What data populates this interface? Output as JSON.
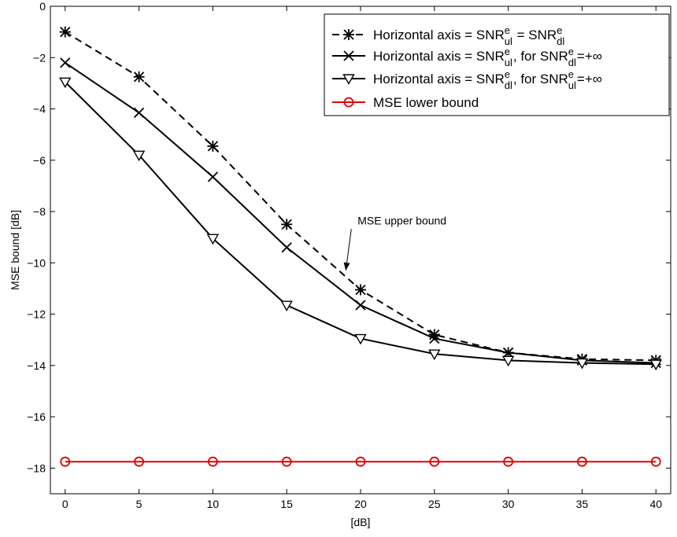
{
  "chart_data": {
    "type": "line",
    "xlabel": "[dB]",
    "ylabel": "MSE bound [dB]",
    "xlim": [
      -1,
      41
    ],
    "ylim": [
      -19,
      0
    ],
    "xticks": [
      0,
      5,
      10,
      15,
      20,
      25,
      30,
      35,
      40
    ],
    "yticks": [
      0,
      -2,
      -4,
      -6,
      -8,
      -10,
      -12,
      -14,
      -16,
      -18
    ],
    "grid": false,
    "legend_position": "top-right",
    "x": [
      0,
      5,
      10,
      15,
      20,
      25,
      30,
      35,
      40
    ],
    "series": [
      {
        "name": "Horizontal axis = SNR^e_ul = SNR^e_dl",
        "legend_parts": [
          "Horizontal axis =   SNR",
          "e",
          "ul",
          " = SNR",
          "e",
          "dl"
        ],
        "values": [
          -1.0,
          -2.75,
          -5.45,
          -8.5,
          -11.05,
          -12.8,
          -13.5,
          -13.75,
          -13.8
        ],
        "marker": "asterisk",
        "linestyle": "dashed",
        "color": "#000000"
      },
      {
        "name": "Horizontal axis = SNR^e_ul, for SNR^e_dl=+∞",
        "legend_parts": [
          "Horizontal axis =  SNR",
          "e",
          "ul",
          ", for SNR",
          "e",
          "dl",
          "=+∞"
        ],
        "values": [
          -2.2,
          -4.15,
          -6.65,
          -9.4,
          -11.65,
          -12.95,
          -13.5,
          -13.8,
          -13.9
        ],
        "marker": "x",
        "linestyle": "solid",
        "color": "#000000"
      },
      {
        "name": "Horizontal axis = SNR^e_dl, for SNR^e_ul=+∞",
        "legend_parts": [
          "Horizontal axis = SNR",
          "e",
          "dl",
          ", for SNR",
          "e",
          "ul",
          "=+∞"
        ],
        "values": [
          -2.95,
          -5.8,
          -9.05,
          -11.65,
          -12.95,
          -13.55,
          -13.8,
          -13.9,
          -13.95
        ],
        "marker": "triangle-down",
        "linestyle": "solid",
        "color": "#000000"
      },
      {
        "name": "MSE lower bound",
        "legend_parts": [
          "MSE lower bound"
        ],
        "values": [
          -17.75,
          -17.75,
          -17.75,
          -17.75,
          -17.75,
          -17.75,
          -17.75,
          -17.75,
          -17.75
        ],
        "marker": "circle",
        "linestyle": "solid",
        "color": "#e00000"
      }
    ],
    "annotations": [
      {
        "text": "MSE upper bound",
        "text_at": [
          19.8,
          -8.5
        ],
        "arrow_to": [
          19.0,
          -10.3
        ]
      }
    ]
  }
}
